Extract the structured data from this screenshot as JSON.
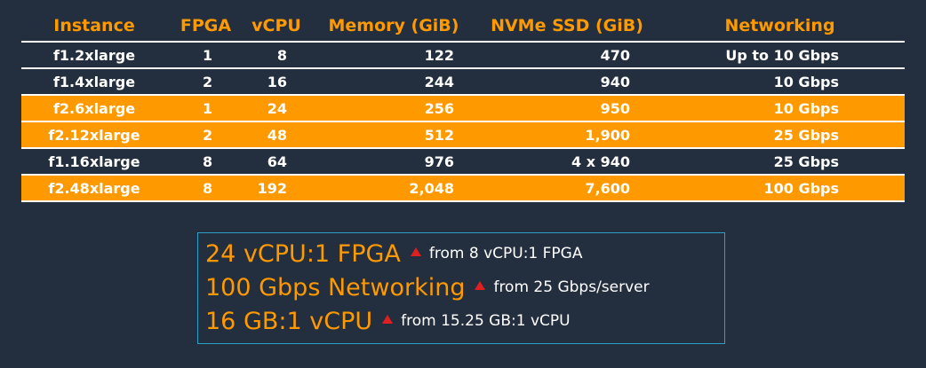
{
  "table": {
    "headers": [
      "Instance",
      "FPGA",
      "vCPU",
      "Memory (GiB)",
      "NVMe SSD (GiB)",
      "Networking"
    ],
    "rows": [
      {
        "instance": "f1.2xlarge",
        "fpga": "1",
        "vcpu": "8",
        "memory": "122",
        "ssd": "470",
        "networking": "Up to 10 Gbps",
        "highlighted": false
      },
      {
        "instance": "f1.4xlarge",
        "fpga": "2",
        "vcpu": "16",
        "memory": "244",
        "ssd": "940",
        "networking": "10 Gbps",
        "highlighted": false
      },
      {
        "instance": "f2.6xlarge",
        "fpga": "1",
        "vcpu": "24",
        "memory": "256",
        "ssd": "950",
        "networking": "10 Gbps",
        "highlighted": true
      },
      {
        "instance": "f2.12xlarge",
        "fpga": "2",
        "vcpu": "48",
        "memory": "512",
        "ssd": "1,900",
        "networking": "25 Gbps",
        "highlighted": true
      },
      {
        "instance": "f1.16xlarge",
        "fpga": "8",
        "vcpu": "64",
        "memory": "976",
        "ssd": "4 x 940",
        "networking": "25 Gbps",
        "highlighted": false
      },
      {
        "instance": "f2.48xlarge",
        "fpga": "8",
        "vcpu": "192",
        "memory": "2,048",
        "ssd": "7,600",
        "networking": "100 Gbps",
        "highlighted": true
      }
    ]
  },
  "callout": {
    "lines": [
      {
        "main": "24 vCPU:1 FPGA",
        "sub": "from 8 vCPU:1 FPGA",
        "icon": "up-triangle-icon"
      },
      {
        "main": "100 Gbps Networking",
        "sub": "from 25 Gbps/server",
        "icon": "up-triangle-icon"
      },
      {
        "main": "16 GB:1 vCPU",
        "sub": "from 15.25 GB:1 vCPU",
        "icon": "up-triangle-icon"
      }
    ]
  },
  "colors": {
    "background": "#232f3e",
    "accent": "#ff9900",
    "arrow": "#e02020",
    "callout_border": "#2e9fc6"
  }
}
